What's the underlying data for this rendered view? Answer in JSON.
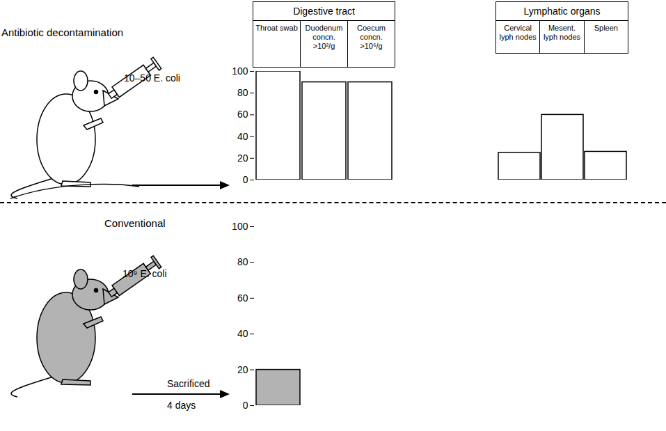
{
  "header": {
    "groups": [
      {
        "title": "Digestive tract",
        "columns": [
          "Throat swab",
          "Duodenum concn. >10²/g",
          "Coecum concn. >10⁶/g"
        ]
      },
      {
        "title": "Lymphatic organs",
        "columns": [
          "Cervical lyph nodes",
          "Mesent. lyph nodes",
          "Spleen"
        ]
      }
    ]
  },
  "chart_data": [
    {
      "type": "bar",
      "title": "Antibiotic decontamination",
      "annotations": [
        "10–50 E. coli"
      ],
      "categories": [
        "Throat swab",
        "Duodenum concn. >10²/g",
        "Coecum concn. >10⁶/g",
        "Cervical lyph nodes",
        "Mesent. lyph nodes",
        "Spleen"
      ],
      "values": [
        100,
        90,
        90,
        25,
        60,
        26
      ],
      "color": "#ffffff",
      "ylim": [
        0,
        100
      ],
      "yticks": [
        0,
        20,
        40,
        60,
        80,
        100
      ],
      "tick_labels": "y"
    },
    {
      "type": "bar",
      "title": "Conventional",
      "annotations": [
        "10⁹ E. coli",
        "Sacrificed",
        "4 days"
      ],
      "categories": [
        "Throat swab",
        "Duodenum concn. >10²/g",
        "Coecum concn. >10⁶/g",
        "Cervical lyph nodes",
        "Mesent. lyph nodes",
        "Spleen"
      ],
      "values": [
        20,
        0,
        0,
        0,
        0,
        0
      ],
      "color": "#b3b3b3",
      "ylim": [
        0,
        100
      ],
      "yticks": [
        0,
        20,
        40,
        60,
        80,
        100
      ],
      "tick_labels": "y"
    }
  ]
}
